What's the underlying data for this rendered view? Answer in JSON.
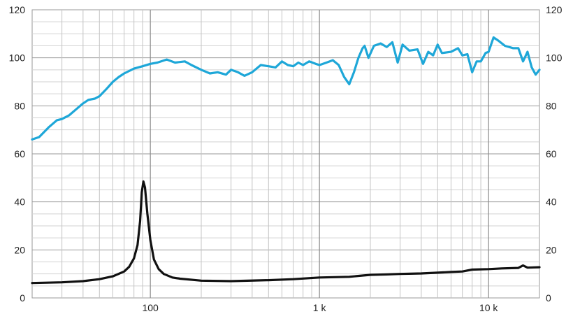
{
  "chart_data": {
    "type": "line",
    "x_scale": "log",
    "xlim": [
      20,
      20000
    ],
    "ylim": [
      0,
      120
    ],
    "grid": true,
    "y_ticks": [
      0,
      20,
      40,
      60,
      80,
      100,
      120
    ],
    "y_tick_labels": [
      "0",
      "20",
      "40",
      "60",
      "80",
      "100",
      "120"
    ],
    "x_tick_values": [
      100,
      1000,
      10000
    ],
    "x_tick_labels": [
      "100",
      "1 k",
      "10 k"
    ],
    "y_tick_labels_right": [
      "0",
      "20",
      "40",
      "60",
      "80",
      "100",
      "120"
    ],
    "series": [
      {
        "color": "#1ea7d8",
        "points": [
          [
            20,
            66
          ],
          [
            22,
            67
          ],
          [
            25,
            71
          ],
          [
            28,
            74
          ],
          [
            30,
            74.5
          ],
          [
            33,
            76
          ],
          [
            37,
            79
          ],
          [
            40,
            81
          ],
          [
            43,
            82.5
          ],
          [
            47,
            83
          ],
          [
            50,
            84
          ],
          [
            55,
            87
          ],
          [
            60,
            90
          ],
          [
            65,
            92
          ],
          [
            70,
            93.5
          ],
          [
            80,
            95.5
          ],
          [
            90,
            96.5
          ],
          [
            100,
            97.5
          ],
          [
            110,
            98
          ],
          [
            125,
            99.3
          ],
          [
            140,
            98
          ],
          [
            160,
            98.5
          ],
          [
            175,
            97
          ],
          [
            200,
            95
          ],
          [
            225,
            93.5
          ],
          [
            250,
            94
          ],
          [
            280,
            93
          ],
          [
            300,
            95
          ],
          [
            330,
            94
          ],
          [
            360,
            92.5
          ],
          [
            400,
            94
          ],
          [
            450,
            97
          ],
          [
            500,
            96.5
          ],
          [
            550,
            96
          ],
          [
            600,
            98.5
          ],
          [
            650,
            97
          ],
          [
            700,
            96.5
          ],
          [
            750,
            98
          ],
          [
            800,
            97
          ],
          [
            870,
            98.5
          ],
          [
            950,
            97.5
          ],
          [
            1000,
            97
          ],
          [
            1100,
            98
          ],
          [
            1200,
            99
          ],
          [
            1300,
            97
          ],
          [
            1400,
            92
          ],
          [
            1500,
            89
          ],
          [
            1600,
            94
          ],
          [
            1700,
            100
          ],
          [
            1800,
            104
          ],
          [
            1850,
            105
          ],
          [
            1950,
            100
          ],
          [
            2100,
            105
          ],
          [
            2300,
            106
          ],
          [
            2500,
            104.5
          ],
          [
            2700,
            106.5
          ],
          [
            2900,
            98
          ],
          [
            3100,
            105.5
          ],
          [
            3400,
            103
          ],
          [
            3800,
            103.5
          ],
          [
            4100,
            97.5
          ],
          [
            4400,
            102.5
          ],
          [
            4700,
            101
          ],
          [
            5000,
            105.5
          ],
          [
            5300,
            102
          ],
          [
            6000,
            102.5
          ],
          [
            6600,
            104
          ],
          [
            7000,
            101
          ],
          [
            7500,
            101.5
          ],
          [
            8000,
            94
          ],
          [
            8500,
            98.5
          ],
          [
            9000,
            98.5
          ],
          [
            9600,
            102
          ],
          [
            10000,
            102.5
          ],
          [
            10700,
            108.5
          ],
          [
            11500,
            107
          ],
          [
            12500,
            105
          ],
          [
            14000,
            104
          ],
          [
            15000,
            104
          ],
          [
            16000,
            98.5
          ],
          [
            17000,
            102.5
          ],
          [
            18000,
            96
          ],
          [
            19000,
            93
          ],
          [
            20000,
            95
          ]
        ]
      },
      {
        "color": "#111111",
        "points": [
          [
            20,
            6.2
          ],
          [
            30,
            6.5
          ],
          [
            40,
            7
          ],
          [
            50,
            7.8
          ],
          [
            60,
            9
          ],
          [
            70,
            11
          ],
          [
            75,
            13
          ],
          [
            80,
            16.5
          ],
          [
            84,
            22
          ],
          [
            87,
            32
          ],
          [
            89,
            44
          ],
          [
            91,
            48.5
          ],
          [
            93,
            46
          ],
          [
            96,
            35
          ],
          [
            100,
            24
          ],
          [
            105,
            16
          ],
          [
            112,
            12
          ],
          [
            120,
            10
          ],
          [
            135,
            8.5
          ],
          [
            150,
            8
          ],
          [
            200,
            7.2
          ],
          [
            300,
            7
          ],
          [
            500,
            7.4
          ],
          [
            700,
            7.8
          ],
          [
            1000,
            8.5
          ],
          [
            1500,
            8.8
          ],
          [
            2000,
            9.6
          ],
          [
            2500,
            9.8
          ],
          [
            3000,
            10
          ],
          [
            4000,
            10.2
          ],
          [
            5000,
            10.5
          ],
          [
            6000,
            10.8
          ],
          [
            7000,
            11
          ],
          [
            8000,
            11.8
          ],
          [
            10000,
            12
          ],
          [
            12000,
            12.3
          ],
          [
            15000,
            12.5
          ],
          [
            16000,
            13.5
          ],
          [
            17000,
            12.6
          ],
          [
            20000,
            12.8
          ]
        ]
      }
    ]
  }
}
